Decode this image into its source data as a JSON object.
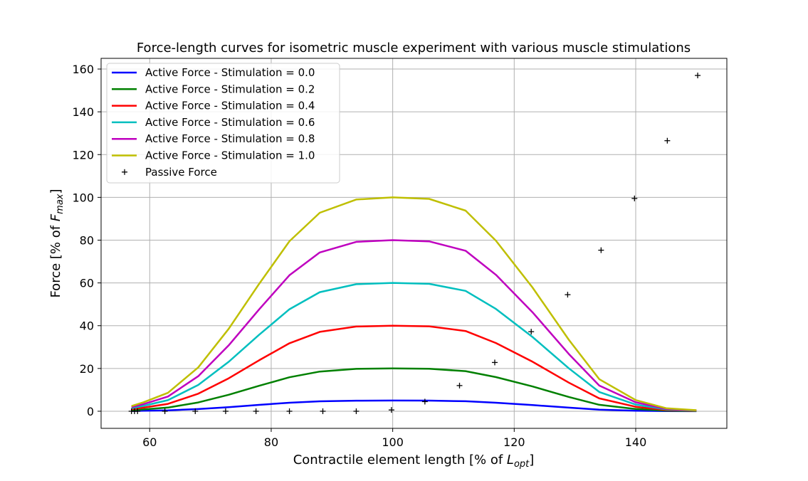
{
  "chart_data": {
    "type": "line",
    "title": "Force-length curves for isometric muscle experiment with various muscle stimulations",
    "xlabel": {
      "main": "Contractile element length [% of ",
      "var": "L",
      "sub": "opt",
      "close": "]"
    },
    "ylabel": {
      "main": "Force [% of ",
      "var": "F",
      "sub": "max",
      "close": "]"
    },
    "xlim": [
      52,
      155
    ],
    "ylim": [
      -8,
      165
    ],
    "xticks": [
      60,
      80,
      100,
      120,
      140
    ],
    "yticks": [
      0,
      20,
      40,
      60,
      80,
      100,
      120,
      140,
      160
    ],
    "grid": true,
    "legend_position": "top-left",
    "x": [
      57,
      59,
      63,
      68,
      73,
      78,
      83,
      88,
      94,
      100,
      106,
      112,
      117,
      123,
      129,
      134,
      140,
      145,
      150
    ],
    "series": [
      {
        "name": "Active Force - Stimulation = 0.0",
        "color": "#0000ff",
        "scale": 0.05
      },
      {
        "name": "Active Force - Stimulation = 0.2",
        "color": "#008000",
        "scale": 0.2
      },
      {
        "name": "Active Force - Stimulation = 0.4",
        "color": "#ff0000",
        "scale": 0.4
      },
      {
        "name": "Active Force - Stimulation = 0.6",
        "color": "#00bfbf",
        "scale": 0.6
      },
      {
        "name": "Active Force - Stimulation = 0.8",
        "color": "#bf00bf",
        "scale": 0.8
      },
      {
        "name": "Active Force - Stimulation = 1.0",
        "color": "#bfbf00",
        "scale": 1.0
      }
    ],
    "base_curve": [
      2.4,
      4.2,
      8.6,
      20.5,
      38.5,
      59.5,
      79.5,
      92.8,
      99.0,
      100.0,
      99.3,
      93.8,
      79.7,
      57.9,
      33.4,
      15.0,
      5.2,
      1.4,
      0.5
    ],
    "passive": {
      "name": "Passive Force",
      "color": "#000000",
      "x": [
        57,
        57.5,
        58,
        62.5,
        67.5,
        72.5,
        77.5,
        83,
        88.5,
        94,
        99.8,
        105.3,
        111,
        116.8,
        122.8,
        128.8,
        134.3,
        139.8,
        145.2,
        150.2
      ],
      "y": [
        0,
        0,
        0,
        0,
        0,
        0,
        0,
        0,
        0,
        0,
        0.6,
        4.5,
        12.0,
        22.8,
        37.2,
        54.5,
        75.3,
        99.5,
        126.5,
        157.0
      ]
    }
  }
}
